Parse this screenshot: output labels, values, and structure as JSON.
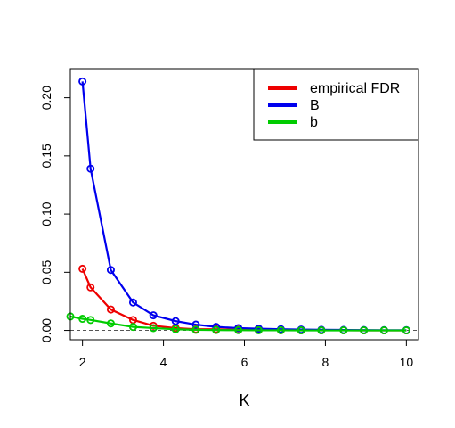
{
  "chart_data": {
    "type": "line",
    "title": "",
    "xlabel": "K",
    "ylabel": "",
    "xlim": [
      1.7,
      10.3
    ],
    "ylim": [
      -0.008,
      0.225
    ],
    "x_ticks": [
      2,
      4,
      6,
      8,
      10
    ],
    "y_ticks": [
      0.0,
      0.05,
      0.1,
      0.15,
      0.2
    ],
    "y_tick_labels": [
      "0.00",
      "0.05",
      "0.10",
      "0.15",
      "0.20"
    ],
    "reference_line": {
      "y": 0,
      "style": "dashed",
      "color": "#555555"
    },
    "legend": {
      "position": "top-right"
    },
    "series": [
      {
        "name": "empirical FDR",
        "color": "#ee0000",
        "x": [
          2,
          2.2,
          2.7,
          3.25,
          3.75,
          4.3,
          4.8,
          5.3,
          5.85,
          6.35,
          6.9,
          7.4,
          7.9,
          8.45,
          8.95,
          9.45,
          10
        ],
        "y": [
          0.053,
          0.037,
          0.018,
          0.009,
          0.004,
          0.002,
          0.001,
          0.001,
          0.0005,
          0.0003,
          0.0002,
          0.0001,
          0.0001,
          0.0001,
          0.0,
          0.0,
          0.0
        ]
      },
      {
        "name": "B",
        "color": "#0000ee",
        "x": [
          2,
          2.2,
          2.7,
          3.25,
          3.75,
          4.3,
          4.8,
          5.3,
          5.85,
          6.35,
          6.9,
          7.4,
          7.9,
          8.45,
          8.95,
          9.45,
          10
        ],
        "y": [
          0.214,
          0.139,
          0.052,
          0.024,
          0.013,
          0.008,
          0.005,
          0.003,
          0.002,
          0.0015,
          0.001,
          0.0007,
          0.0005,
          0.0004,
          0.0003,
          0.0002,
          0.0002
        ]
      },
      {
        "name": "b",
        "color": "#00cc00",
        "x": [
          1.7,
          2,
          2.2,
          2.7,
          3.25,
          3.75,
          4.3,
          4.8,
          5.3,
          5.85,
          6.35,
          6.9,
          7.4,
          7.9,
          8.45,
          8.95,
          9.45,
          10
        ],
        "y": [
          0.012,
          0.01,
          0.009,
          0.006,
          0.003,
          0.002,
          0.001,
          0.0005,
          0.0003,
          0.0002,
          0.0001,
          0.0001,
          0.0,
          0.0,
          0.0,
          0.0,
          0.0,
          0.0
        ]
      }
    ]
  }
}
